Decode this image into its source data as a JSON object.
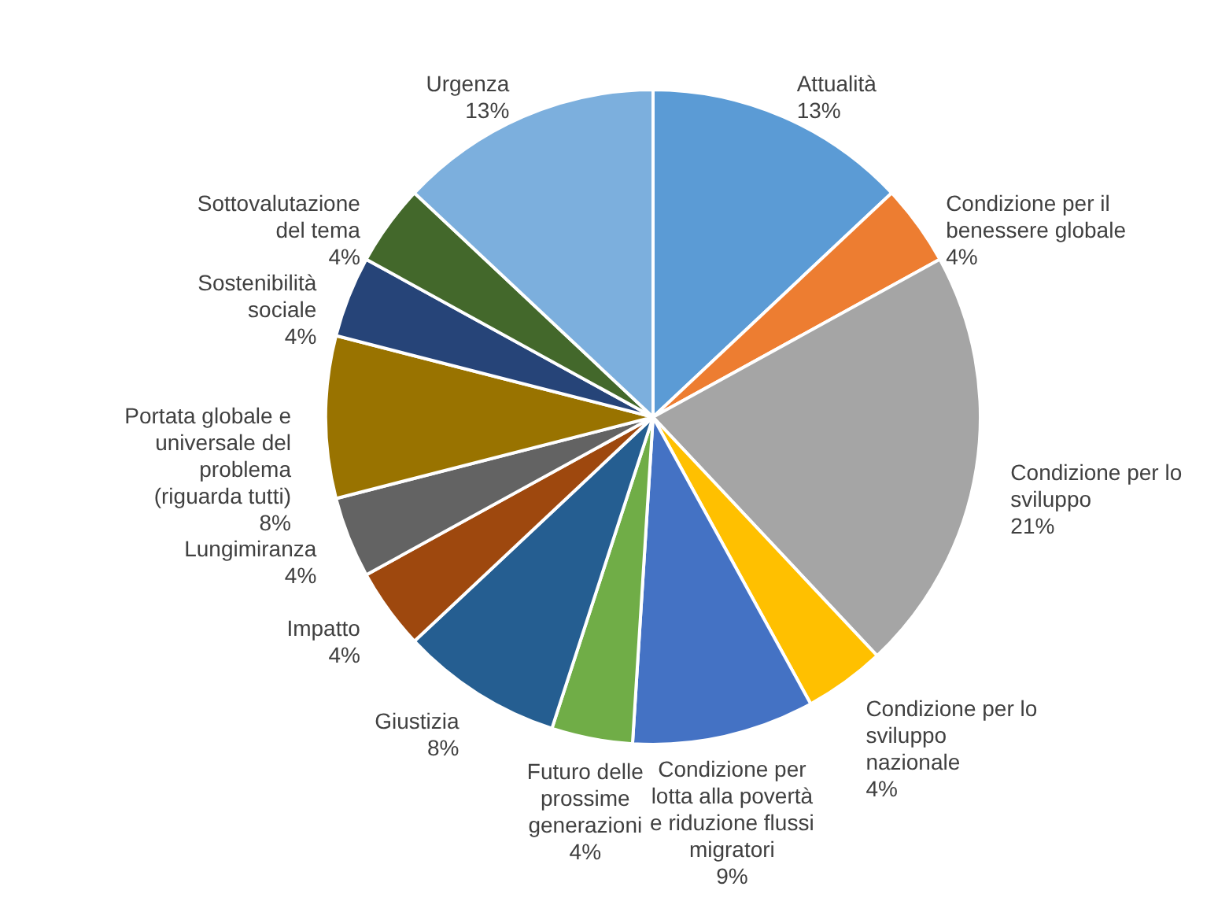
{
  "chart_data": {
    "type": "pie",
    "categories": [
      "Attualità",
      "Condizione per il\nbenessere globale",
      "Condizione per lo\nsviluppo",
      "Condizione per lo\nsviluppo\nnazionale",
      "Condizione per\nlotta alla povertà\ne riduzione flussi\nmigratori",
      "Futuro delle\nprossime\ngenerazioni",
      "Giustizia",
      "Impatto",
      "Lungimiranza",
      "Portata globale e\nuniversale del\nproblema\n(riguarda tutti)",
      "Sostenibilità\nsociale",
      "Sottovalutazione\ndel tema",
      "Urgenza"
    ],
    "values": [
      13,
      4,
      21,
      4,
      9,
      4,
      8,
      4,
      4,
      8,
      4,
      4,
      13
    ],
    "value_labels": [
      "13%",
      "4%",
      "21%",
      "4%",
      "9%",
      "4%",
      "8%",
      "4%",
      "4%",
      "8%",
      "4%",
      "4%",
      "13%"
    ],
    "colors": [
      "#5b9bd5",
      "#ed7d31",
      "#a5a5a5",
      "#ffc000",
      "#4472c4",
      "#70ad47",
      "#255e91",
      "#9e480e",
      "#636363",
      "#997300",
      "#264478",
      "#43682b",
      "#7cafdd"
    ],
    "legend": false
  }
}
